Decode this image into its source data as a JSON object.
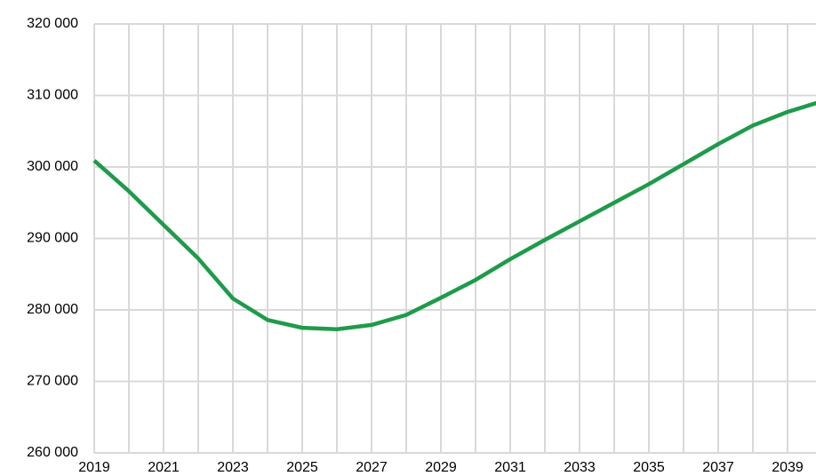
{
  "chart_data": {
    "type": "line",
    "x": [
      2019,
      2020,
      2021,
      2022,
      2023,
      2024,
      2025,
      2026,
      2027,
      2028,
      2029,
      2030,
      2031,
      2032,
      2033,
      2034,
      2035,
      2036,
      2037,
      2038,
      2039,
      2040
    ],
    "series": [
      {
        "color": "#1e9b4a",
        "values": [
          300900,
          296600,
          291900,
          287200,
          281600,
          278600,
          277500,
          277300,
          277900,
          279300,
          281700,
          284200,
          287100,
          289800,
          292400,
          295000,
          297600,
          300400,
          303200,
          305800,
          307700,
          309200
        ]
      }
    ],
    "xlim": [
      2019,
      2040
    ],
    "xticks": [
      2019,
      2021,
      2023,
      2025,
      2027,
      2029,
      2031,
      2033,
      2035,
      2037,
      2039
    ],
    "ylim": [
      260000,
      320000
    ],
    "yticks": [
      {
        "value": 260000,
        "label": "260 000"
      },
      {
        "value": 270000,
        "label": "270 000"
      },
      {
        "value": 280000,
        "label": "280 000"
      },
      {
        "value": 290000,
        "label": "290 000"
      },
      {
        "value": 300000,
        "label": "300 000"
      },
      {
        "value": 310000,
        "label": "310 000"
      },
      {
        "value": 320000,
        "label": "320 000"
      }
    ],
    "grid": true
  }
}
